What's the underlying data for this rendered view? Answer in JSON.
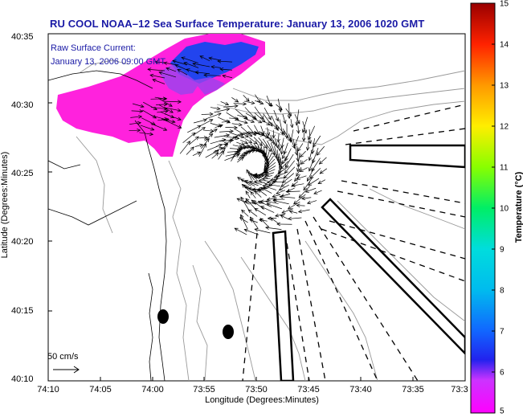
{
  "title": "RU COOL  NOAA–12  Sea Surface Temperature:  January 13, 2006 1020 GMT",
  "inset": {
    "line1": "Raw Surface Current:",
    "line2": "January 13, 2006 09:00 GMT"
  },
  "x_axis": {
    "label": "Longitude (Degrees:Minutes)",
    "ticks": [
      "74:10",
      "74:05",
      "74:00",
      "73:55",
      "73:50",
      "73:45",
      "73:40",
      "73:35",
      "73:3"
    ]
  },
  "y_axis": {
    "label": "Latitude (Degrees:Minutes)",
    "ticks": [
      "40:35",
      "40:30",
      "40:25",
      "40:20",
      "40:15",
      "40:10"
    ]
  },
  "colorbar": {
    "label": "Temperature (°C)",
    "ticks": [
      "15",
      "14",
      "13",
      "12",
      "11",
      "10",
      "9",
      "8",
      "7",
      "6",
      "5"
    ],
    "range": [
      5,
      15
    ],
    "colors": [
      "#ff00ff",
      "#3333ff",
      "#00aaff",
      "#00dddd",
      "#00ee88",
      "#66ff00",
      "#ffee00",
      "#ffaa00",
      "#ff5500",
      "#dd0000",
      "#990000"
    ]
  },
  "scale": {
    "label": "50 cm/s"
  },
  "colors": {
    "title": "#1a1aa6",
    "sst_magenta": "#ff22dd",
    "sst_blue": "#2244ee",
    "contour": "#999999"
  }
}
